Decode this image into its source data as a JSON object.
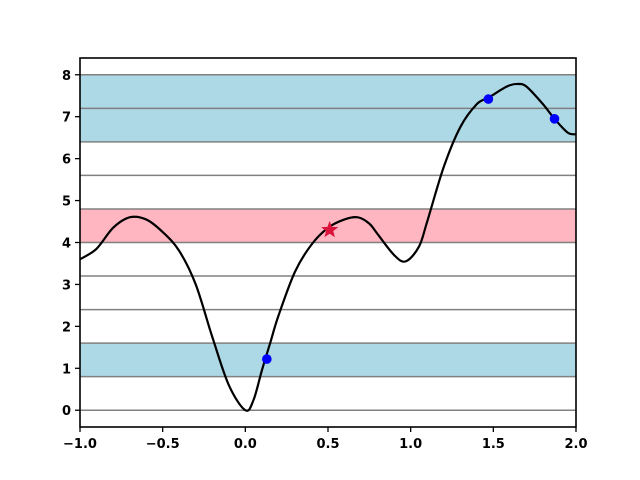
{
  "chart_data": {
    "type": "line",
    "title": "",
    "xlabel": "",
    "ylabel": "",
    "xlim": [
      -1.0,
      2.0
    ],
    "ylim": [
      -0.4,
      8.4
    ],
    "x_ticks": [
      -1.0,
      -0.5,
      0.0,
      0.5,
      1.0,
      1.5,
      2.0
    ],
    "x_tick_labels": [
      "−1.0",
      "−0.5",
      "0.0",
      "0.5",
      "1.0",
      "1.5",
      "2.0"
    ],
    "y_ticks": [
      0,
      1,
      2,
      3,
      4,
      5,
      6,
      7,
      8
    ],
    "y_tick_labels": [
      "0",
      "1",
      "2",
      "3",
      "4",
      "5",
      "6",
      "7",
      "8"
    ],
    "grid": false,
    "horizontal_lines": [
      0,
      0.8,
      1.6,
      2.4,
      3.2,
      4.0,
      4.8,
      5.6,
      6.4,
      7.2,
      8.0
    ],
    "horizontal_line_color": "#808080",
    "bands": [
      {
        "y0": 0.8,
        "y1": 1.6,
        "color": "#add8e6"
      },
      {
        "y0": 4.0,
        "y1": 4.8,
        "color": "#ffb6c1"
      },
      {
        "y0": 6.4,
        "y1": 8.0,
        "color": "#add8e6"
      }
    ],
    "series": [
      {
        "color": "#000000",
        "x": [
          -1.0,
          -0.9,
          -0.8,
          -0.7,
          -0.6,
          -0.5,
          -0.4,
          -0.3,
          -0.2,
          -0.1,
          0.0,
          0.05,
          0.1,
          0.15,
          0.2,
          0.3,
          0.4,
          0.5,
          0.6,
          0.68,
          0.75,
          0.8,
          0.9,
          0.97,
          1.05,
          1.1,
          1.2,
          1.3,
          1.4,
          1.47,
          1.55,
          1.6,
          1.65,
          1.7,
          1.8,
          1.87,
          1.95,
          2.0
        ],
        "y": [
          3.6,
          3.85,
          4.35,
          4.6,
          4.55,
          4.25,
          3.8,
          3.0,
          1.75,
          0.6,
          0.0,
          0.25,
          0.95,
          1.6,
          2.25,
          3.3,
          3.95,
          4.35,
          4.55,
          4.6,
          4.45,
          4.2,
          3.7,
          3.55,
          3.9,
          4.5,
          5.8,
          6.75,
          7.3,
          7.45,
          7.65,
          7.75,
          7.78,
          7.72,
          7.3,
          6.95,
          6.62,
          6.58
        ]
      }
    ],
    "markers": [
      {
        "shape": "circle",
        "color": "#0000ff",
        "x": 0.13,
        "y": 1.22
      },
      {
        "shape": "circle",
        "color": "#0000ff",
        "x": 1.47,
        "y": 7.42
      },
      {
        "shape": "circle",
        "color": "#0000ff",
        "x": 1.87,
        "y": 6.95
      },
      {
        "shape": "star",
        "color": "#dc143c",
        "x": 0.51,
        "y": 4.3
      }
    ]
  }
}
